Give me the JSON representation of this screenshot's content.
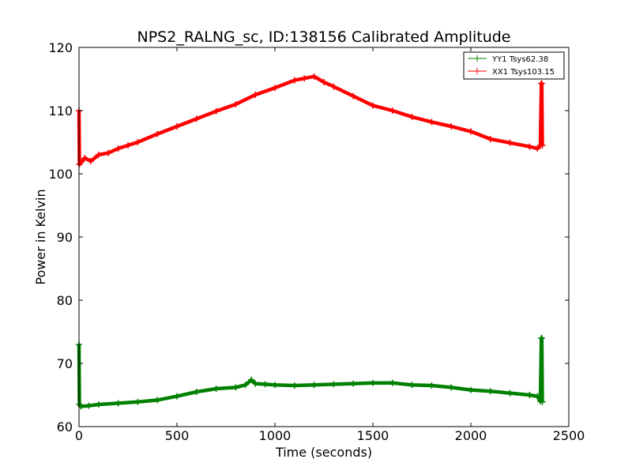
{
  "chart_data": {
    "type": "line",
    "title": "NPS2_RALNG_sc, ID:138156 Calibrated Amplitude",
    "xlabel": "Time (seconds)",
    "ylabel": "Power in Kelvin",
    "xlim": [
      0,
      2500
    ],
    "ylim": [
      60,
      120
    ],
    "xticks": [
      "0",
      "500",
      "1000",
      "1500",
      "2000",
      "2500"
    ],
    "yticks": [
      "60",
      "70",
      "80",
      "90",
      "100",
      "110",
      "120"
    ],
    "grid": false,
    "legend_position": "top-right",
    "series": [
      {
        "name": "YY1 Tsys62.38",
        "color": "#008000",
        "x": [
          0,
          2,
          10,
          50,
          100,
          200,
          300,
          400,
          500,
          600,
          700,
          800,
          850,
          880,
          900,
          950,
          1000,
          1100,
          1200,
          1300,
          1400,
          1500,
          1600,
          1700,
          1800,
          1900,
          2000,
          2100,
          2200,
          2300,
          2340,
          2355,
          2360,
          2362,
          2365
        ],
        "values": [
          73,
          63.5,
          63.2,
          63.3,
          63.5,
          63.7,
          63.9,
          64.2,
          64.8,
          65.5,
          66.0,
          66.2,
          66.6,
          67.4,
          66.8,
          66.7,
          66.6,
          66.5,
          66.6,
          66.7,
          66.8,
          66.9,
          66.9,
          66.6,
          66.5,
          66.2,
          65.8,
          65.6,
          65.3,
          65.0,
          64.8,
          64.0,
          74.0,
          74.0,
          63.9
        ]
      },
      {
        "name": "XX1 Tsys103.15",
        "color": "#ff0000",
        "x": [
          0,
          2,
          10,
          30,
          60,
          100,
          150,
          200,
          250,
          300,
          400,
          500,
          600,
          700,
          800,
          900,
          1000,
          1100,
          1150,
          1200,
          1250,
          1300,
          1400,
          1500,
          1600,
          1700,
          1800,
          1900,
          2000,
          2100,
          2200,
          2300,
          2340,
          2355,
          2360,
          2362,
          2365
        ],
        "values": [
          110,
          101.5,
          101.8,
          102.5,
          102.0,
          103.0,
          103.3,
          104.0,
          104.5,
          105.0,
          106.3,
          107.5,
          108.7,
          109.9,
          111.0,
          112.5,
          113.6,
          114.8,
          115.1,
          115.4,
          114.5,
          113.8,
          112.3,
          110.8,
          110.0,
          109.0,
          108.2,
          107.5,
          106.7,
          105.5,
          104.9,
          104.3,
          104.0,
          104.5,
          114.3,
          114.3,
          104.5
        ]
      }
    ]
  }
}
